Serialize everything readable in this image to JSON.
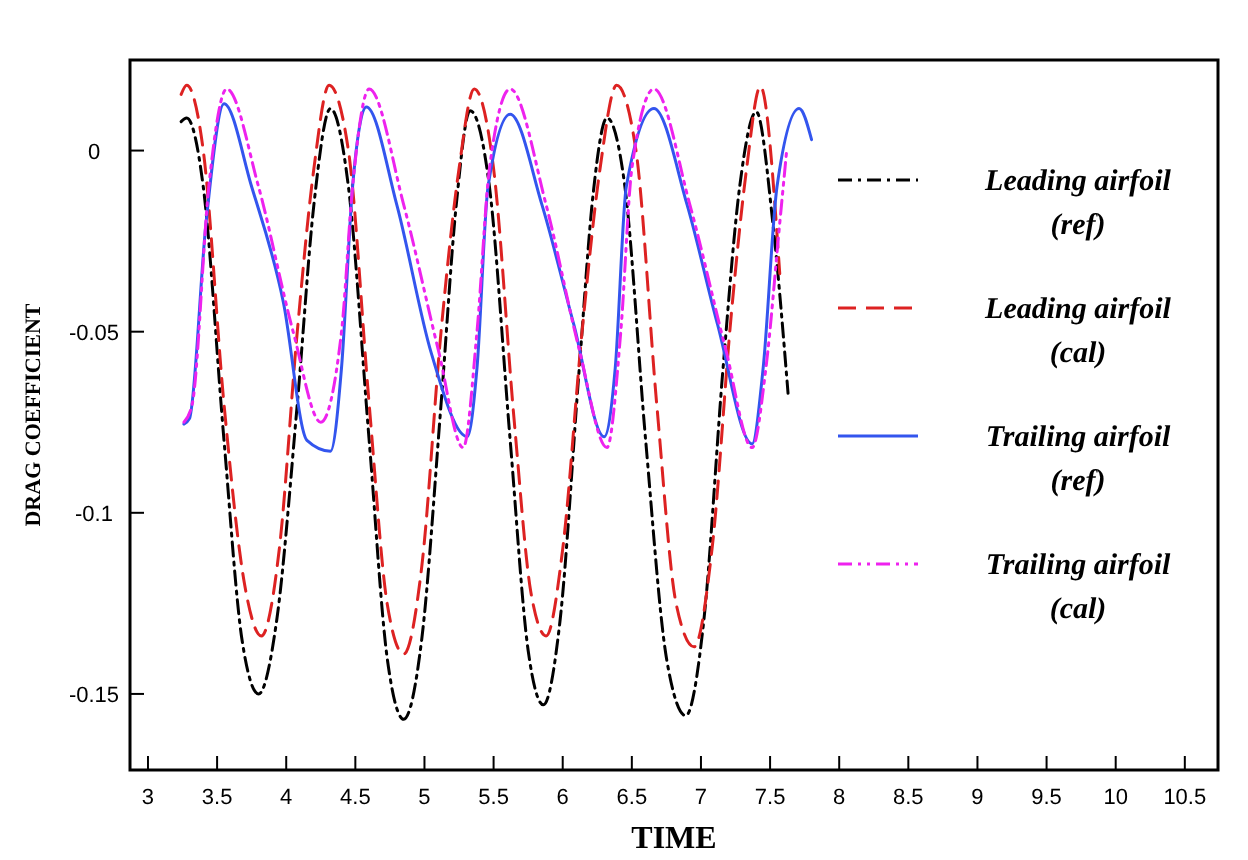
{
  "chart_data": {
    "type": "line",
    "xlabel": "TIME",
    "ylabel": "DRAG COEFFICIENT",
    "xlim": [
      2.87,
      10.74
    ],
    "ylim": [
      -0.171,
      0.025
    ],
    "xticks": [
      3,
      3.5,
      4,
      4.5,
      5,
      5.5,
      6,
      6.5,
      7,
      7.5,
      8,
      8.5,
      9,
      9.5,
      10,
      10.5
    ],
    "yticks": [
      -0.15,
      -0.1,
      -0.05,
      0
    ],
    "grid": false,
    "legend": "right",
    "marker": "none",
    "series": [
      {
        "name": "Leading airfoil (ref)",
        "color": "#000000",
        "line_style": "dashdot",
        "x": [
          3.24,
          3.28,
          3.4,
          3.55,
          3.68,
          3.8,
          3.93,
          4.08,
          4.2,
          4.32,
          4.45,
          4.6,
          4.73,
          4.85,
          4.98,
          5.12,
          5.23,
          5.33,
          5.47,
          5.62,
          5.75,
          5.86,
          5.98,
          6.12,
          6.22,
          6.32,
          6.45,
          6.6,
          6.75,
          6.89,
          7.02,
          7.16,
          7.28,
          7.4,
          7.52,
          7.63
        ],
        "values": [
          0.008,
          0.009,
          -0.01,
          -0.08,
          -0.135,
          -0.15,
          -0.13,
          -0.07,
          -0.015,
          0.0116,
          -0.01,
          -0.08,
          -0.14,
          -0.157,
          -0.135,
          -0.07,
          -0.015,
          0.011,
          -0.01,
          -0.08,
          -0.138,
          -0.153,
          -0.13,
          -0.06,
          -0.012,
          0.009,
          -0.01,
          -0.08,
          -0.14,
          -0.156,
          -0.13,
          -0.06,
          -0.01,
          0.0107,
          -0.02,
          -0.067
        ]
      },
      {
        "name": "Leading airfoil (cal)",
        "color": "#dd2222",
        "line_style": "dashed",
        "x": [
          3.24,
          3.28,
          3.4,
          3.55,
          3.7,
          3.82,
          3.95,
          4.08,
          4.2,
          4.31,
          4.45,
          4.6,
          4.73,
          4.85,
          4.98,
          5.12,
          5.25,
          5.36,
          5.5,
          5.65,
          5.77,
          5.88,
          6.0,
          6.14,
          6.27,
          6.39,
          6.53,
          6.68,
          6.82,
          6.95,
          7.08,
          7.22,
          7.33,
          7.43,
          7.57
        ],
        "values": [
          0.0155,
          0.018,
          0.0,
          -0.07,
          -0.12,
          -0.134,
          -0.11,
          -0.05,
          -0.005,
          0.018,
          0.0,
          -0.07,
          -0.125,
          -0.139,
          -0.115,
          -0.05,
          -0.005,
          0.017,
          -0.005,
          -0.075,
          -0.122,
          -0.134,
          -0.11,
          -0.05,
          -0.005,
          0.018,
          0.0,
          -0.07,
          -0.125,
          -0.137,
          -0.11,
          -0.045,
          -0.005,
          0.0177,
          -0.034
        ]
      },
      {
        "name": "Trailing airfoil (ref)",
        "color": "#3355ee",
        "line_style": "solid",
        "x": [
          3.26,
          3.3,
          3.42,
          3.55,
          3.75,
          3.98,
          4.15,
          4.32,
          4.4,
          4.48,
          4.58,
          4.8,
          5.05,
          5.31,
          5.38,
          5.46,
          5.62,
          5.85,
          6.08,
          6.3,
          6.38,
          6.46,
          6.66,
          6.9,
          7.12,
          7.37,
          7.45,
          7.55,
          7.71,
          7.8
        ],
        "values": [
          -0.0755,
          -0.074,
          -0.02,
          0.0129,
          -0.01,
          -0.042,
          -0.08,
          -0.083,
          -0.06,
          -0.01,
          0.012,
          -0.015,
          -0.056,
          -0.079,
          -0.06,
          -0.01,
          0.01,
          -0.015,
          -0.048,
          -0.079,
          -0.06,
          -0.01,
          0.0116,
          -0.015,
          -0.048,
          -0.081,
          -0.06,
          -0.01,
          0.0116,
          0.003
        ]
      },
      {
        "name": "Trailing airfoil (cal)",
        "color": "#ee22ee",
        "line_style": "dashdotdot",
        "x": [
          3.26,
          3.32,
          3.44,
          3.57,
          3.8,
          4.05,
          4.25,
          4.4,
          4.48,
          4.6,
          4.85,
          5.1,
          5.28,
          5.38,
          5.47,
          5.62,
          5.88,
          6.12,
          6.32,
          6.42,
          6.5,
          6.66,
          6.92,
          7.18,
          7.37,
          7.47,
          7.57,
          7.62
        ],
        "values": [
          -0.075,
          -0.07,
          -0.01,
          0.017,
          -0.01,
          -0.05,
          -0.075,
          -0.05,
          -0.01,
          0.017,
          -0.015,
          -0.055,
          -0.082,
          -0.05,
          -0.005,
          0.017,
          -0.015,
          -0.055,
          -0.082,
          -0.05,
          -0.005,
          0.017,
          -0.015,
          -0.055,
          -0.082,
          -0.06,
          -0.02,
          0.0
        ]
      }
    ]
  }
}
